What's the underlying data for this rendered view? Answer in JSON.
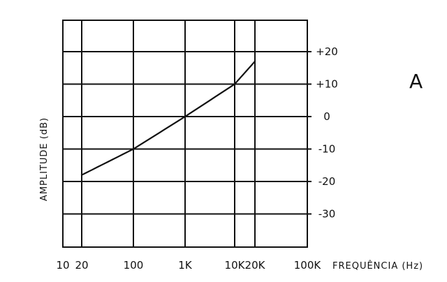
{
  "chart_data": {
    "type": "line",
    "panel_label": "A",
    "xlabel": "FREQUÊNCIA (Hz)",
    "ylabel": "AMPLITUDE (dB)",
    "x_scale": "log",
    "x_ticks": [
      {
        "value": 10,
        "label": "10"
      },
      {
        "value": 20,
        "label": "20"
      },
      {
        "value": 100,
        "label": "100"
      },
      {
        "value": 1000,
        "label": "1K"
      },
      {
        "value": 10000,
        "label": "10K"
      },
      {
        "value": 20000,
        "label": "20K"
      },
      {
        "value": 100000,
        "label": "100K"
      }
    ],
    "y_ticks": [
      {
        "value": 20,
        "label": "+20"
      },
      {
        "value": 10,
        "label": "+10"
      },
      {
        "value": 0,
        "label": "0"
      },
      {
        "value": -10,
        "label": "-10"
      },
      {
        "value": -20,
        "label": "-20"
      },
      {
        "value": -30,
        "label": "-30"
      }
    ],
    "ylim": [
      -41,
      30
    ],
    "grid": true,
    "series": [
      {
        "x": [
          20,
          100,
          1000,
          10000,
          20000
        ],
        "y": [
          -18,
          -10,
          0,
          10,
          17
        ]
      }
    ]
  }
}
